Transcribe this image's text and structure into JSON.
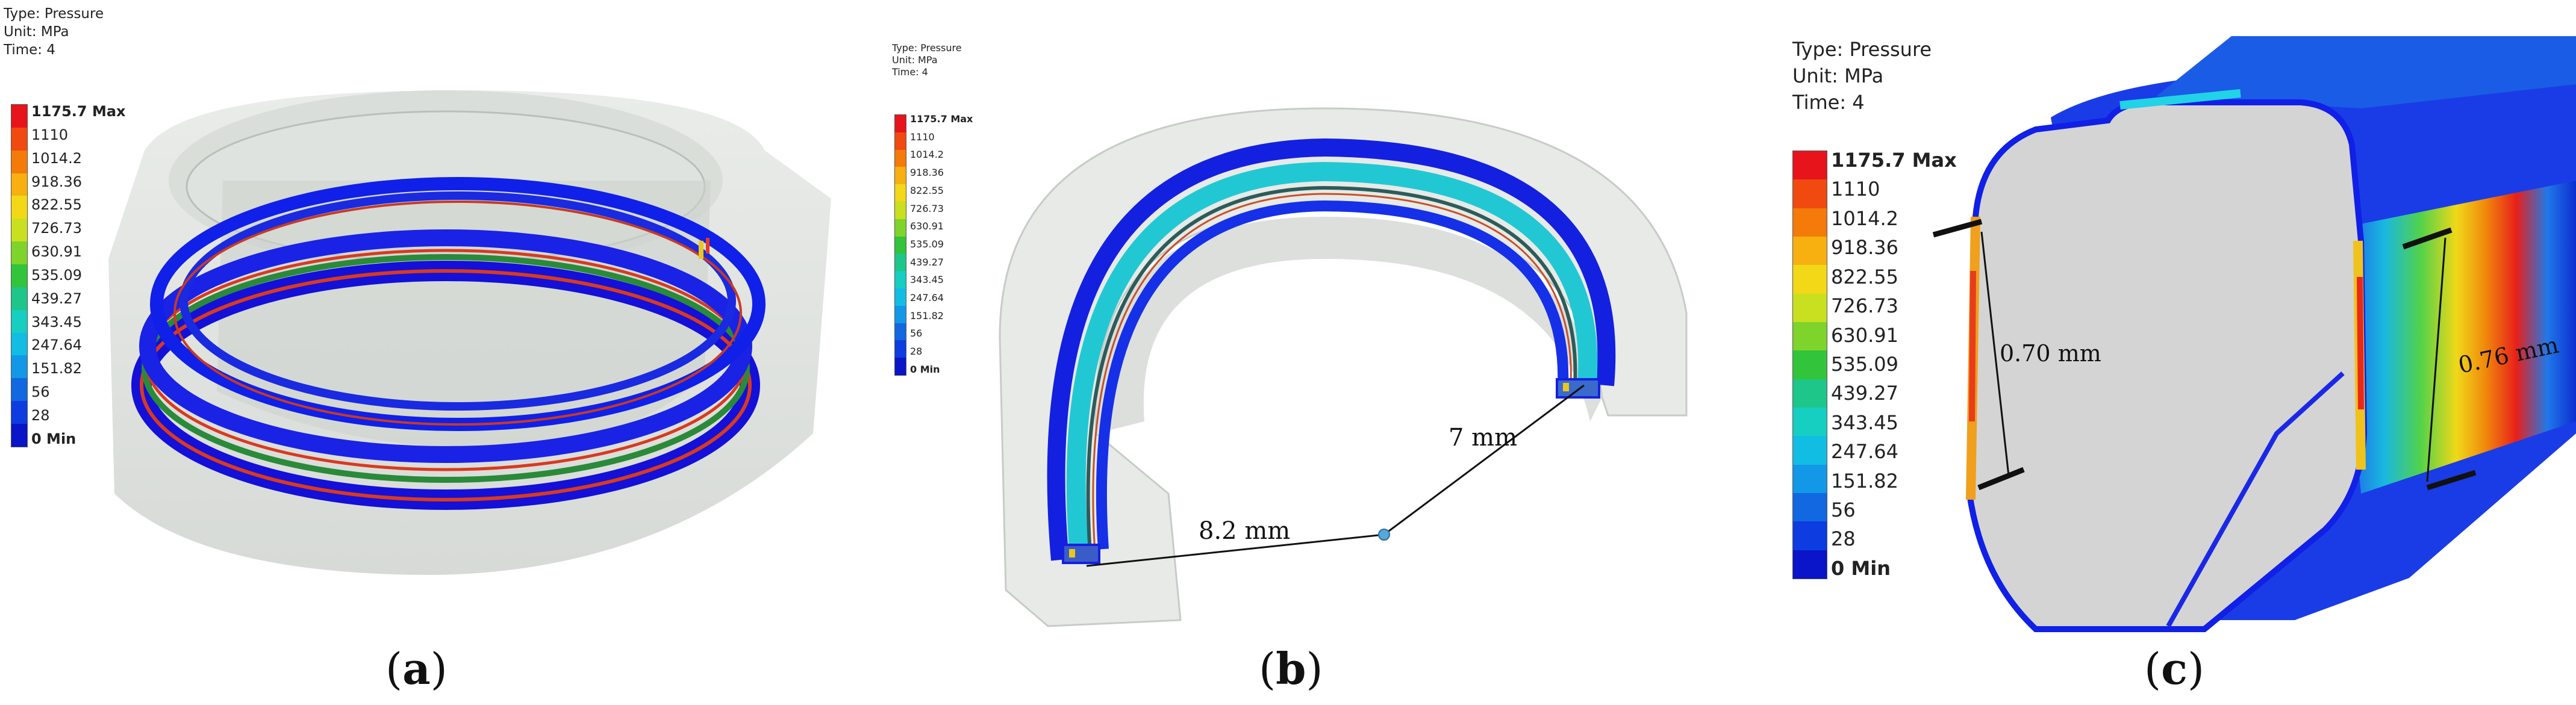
{
  "legend": {
    "type_line": "Type: Pressure",
    "unit_line": "Unit: MPa",
    "time_line": "Time: 4",
    "max_label": "1175.7 Max",
    "min_label": "0 Min",
    "ticks": [
      "1175.7 Max",
      "1110",
      "1014.2",
      "918.36",
      "822.55",
      "726.73",
      "630.91",
      "535.09",
      "439.27",
      "343.45",
      "247.64",
      "151.82",
      "56",
      "28",
      "0 Min"
    ],
    "colors": [
      "#e8141c",
      "#f04a10",
      "#f47a0a",
      "#f8b010",
      "#f2d816",
      "#c8e020",
      "#7ed42a",
      "#32c43a",
      "#1ec68a",
      "#16cfc0",
      "#12bde4",
      "#1298e6",
      "#1168e0",
      "#0d3ce0",
      "#0a14c8"
    ]
  },
  "panels": [
    {
      "caption_open": "(",
      "caption_letter": "a",
      "caption_close": ")"
    },
    {
      "caption_open": "(",
      "caption_letter": "b",
      "caption_close": ")"
    },
    {
      "caption_open": "(",
      "caption_letter": "c",
      "caption_close": ")"
    }
  ],
  "dimensions": {
    "b_left": "8.2 mm",
    "b_right": "7 mm",
    "c_left": "0.70 mm",
    "c_right": "0.76 mm"
  }
}
